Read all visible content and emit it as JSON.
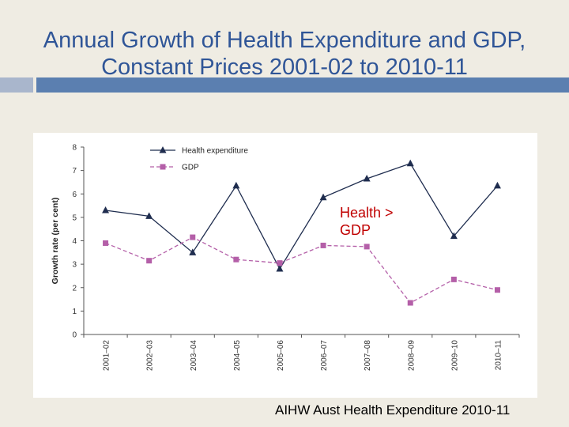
{
  "slide": {
    "title": "Annual Growth of Health Expenditure and GDP, Constant Prices 2001-02 to 2010-11",
    "source": "AIHW Aust Health Expenditure 2010-11"
  },
  "colors": {
    "title": "#2f5597",
    "health_series": "#1f2d4f",
    "gdp_series": "#b45fa8",
    "annotation": "#c00000"
  },
  "chart_data": {
    "type": "line",
    "title": "",
    "xlabel": "",
    "ylabel": "Growth rate (per cent)",
    "ylim": [
      0,
      8
    ],
    "yticks": [
      "0",
      "1",
      "2",
      "3",
      "4",
      "5",
      "6",
      "7",
      "8"
    ],
    "categories": [
      "2001–02",
      "2002–03",
      "2003–04",
      "2004–05",
      "2005–06",
      "2006–07",
      "2007–08",
      "2008–09",
      "2009–10",
      "2010–11"
    ],
    "series": [
      {
        "name": "Health expenditure",
        "marker": "triangle",
        "dash": "solid",
        "values": [
          5.3,
          5.05,
          3.5,
          6.35,
          2.8,
          5.85,
          6.65,
          7.3,
          4.2,
          6.35
        ]
      },
      {
        "name": "GDP",
        "marker": "square",
        "dash": "dashed",
        "values": [
          3.9,
          3.15,
          4.15,
          3.2,
          3.05,
          3.8,
          3.75,
          1.35,
          2.35,
          1.9
        ]
      }
    ],
    "legend_position": "top-left",
    "annotation": "Health >\nGDP"
  }
}
